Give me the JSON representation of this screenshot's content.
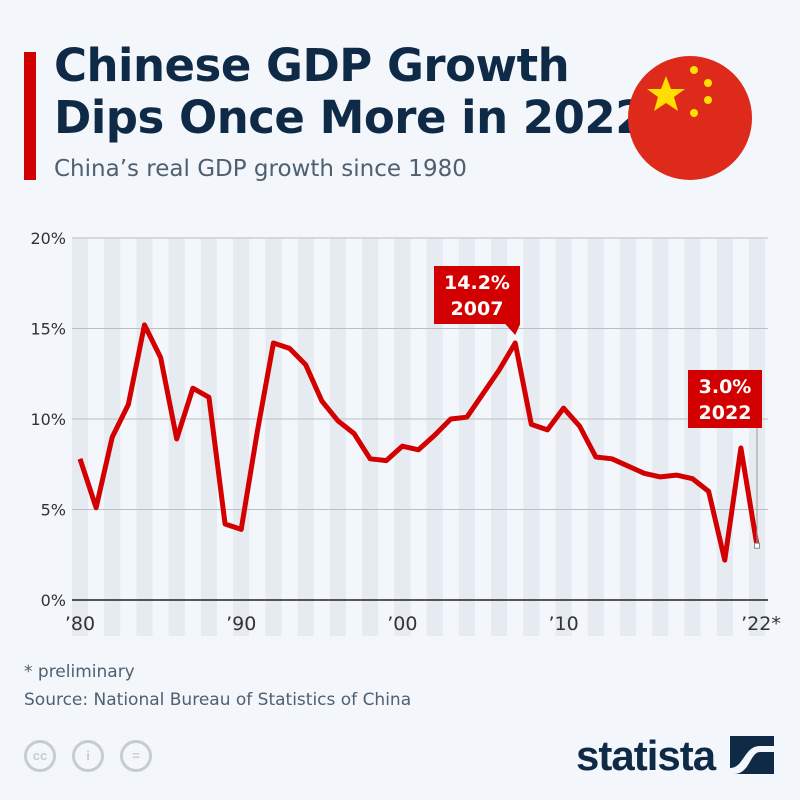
{
  "header": {
    "title_line1": "Chinese GDP Growth",
    "title_line2": "Dips Once More in 2022",
    "subtitle": "China’s real GDP growth since 1980"
  },
  "footer": {
    "note": "* preliminary",
    "source": "Source: National Bureau of Statistics of China",
    "brand": "statista",
    "license_icons": [
      "cc-icon",
      "attribution-icon",
      "no-derivatives-icon"
    ]
  },
  "colors": {
    "line": "#d20000",
    "text": "#0f2a47",
    "stripe": "#e6ebf2"
  },
  "chart_data": {
    "type": "line",
    "x": [
      1980,
      1981,
      1982,
      1983,
      1984,
      1985,
      1986,
      1987,
      1988,
      1989,
      1990,
      1991,
      1992,
      1993,
      1994,
      1995,
      1996,
      1997,
      1998,
      1999,
      2000,
      2001,
      2002,
      2003,
      2004,
      2005,
      2006,
      2007,
      2008,
      2009,
      2010,
      2011,
      2012,
      2013,
      2014,
      2015,
      2016,
      2017,
      2018,
      2019,
      2020,
      2021,
      2022
    ],
    "values": [
      7.8,
      5.1,
      9.0,
      10.8,
      15.2,
      13.4,
      8.9,
      11.7,
      11.2,
      4.2,
      3.9,
      9.3,
      14.2,
      13.9,
      13.0,
      11.0,
      9.9,
      9.2,
      7.8,
      7.7,
      8.5,
      8.3,
      9.1,
      10.0,
      10.1,
      11.4,
      12.7,
      14.2,
      9.7,
      9.4,
      10.6,
      9.6,
      7.9,
      7.8,
      7.4,
      7.0,
      6.8,
      6.9,
      6.7,
      6.0,
      2.2,
      8.4,
      3.0
    ],
    "ylim": [
      0,
      20
    ],
    "yticks": [
      "0%",
      "5%",
      "10%",
      "15%",
      "20%"
    ],
    "xticks": [
      {
        "year": 1980,
        "label": "’80"
      },
      {
        "year": 1990,
        "label": "’90"
      },
      {
        "year": 2000,
        "label": "’00"
      },
      {
        "year": 2010,
        "label": "’10"
      },
      {
        "year": 2022,
        "label": "’22*"
      }
    ],
    "grid": true,
    "annotations": [
      {
        "year": 2007,
        "value_label": "14.2%",
        "year_label": "2007"
      },
      {
        "year": 2022,
        "value_label": "3.0%",
        "year_label": "2022"
      }
    ]
  }
}
